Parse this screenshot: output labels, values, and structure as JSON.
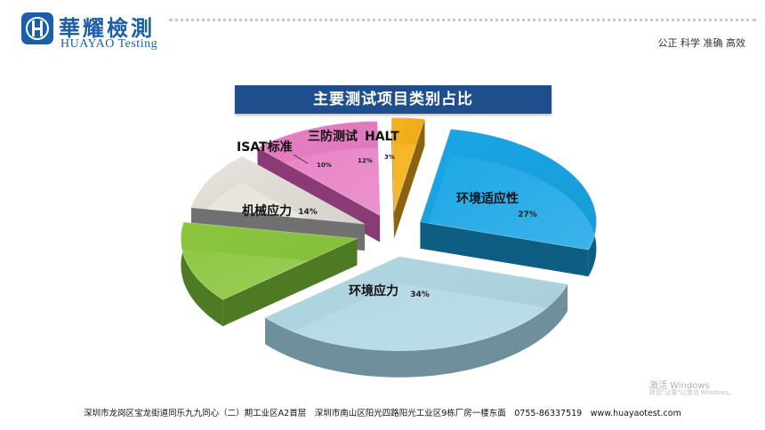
{
  "header": {
    "logo_cn": "華耀檢測",
    "logo_en": "HUAYAO Testing",
    "slogan": "公正 科学 准确 高效"
  },
  "chart_data": {
    "type": "pie",
    "title": "主要测试项目类别占比",
    "slices": [
      {
        "label": "环境适应性",
        "value": 27,
        "value_label": "27%",
        "color": "#1aa6e6",
        "side_color": "#0e5e84"
      },
      {
        "label": "环境应力",
        "value": 34,
        "value_label": "34%",
        "color": "#b2d8e4",
        "side_color": "#6f8f9c"
      },
      {
        "label": "机械应力",
        "value": 14,
        "value_label": "14%",
        "color": "#8cc63f",
        "side_color": "#4f7a24"
      },
      {
        "label": "ISAT标准",
        "value": 10,
        "value_label": "10%",
        "color": "#e6e4dc",
        "side_color": "#707070"
      },
      {
        "label": "三防测试",
        "value": 12,
        "value_label": "12%",
        "color": "#e87fc4",
        "side_color": "#8a3a74"
      },
      {
        "label": "HALT",
        "value": 3,
        "value_label": "3%",
        "color": "#f5b21a",
        "side_color": "#8a6210"
      }
    ],
    "legend": "none"
  },
  "watermark": {
    "line1": "激活 Windows",
    "line2": "转到\"设置\"以激活 Windows。"
  },
  "footer": {
    "text": "深圳市龙岗区宝龙街道同乐九九同心（二）期工业区A2首层　深圳市南山区阳光四路阳光工业区9栋厂房一楼东面　0755-86337519　www.huayaotest.com"
  }
}
